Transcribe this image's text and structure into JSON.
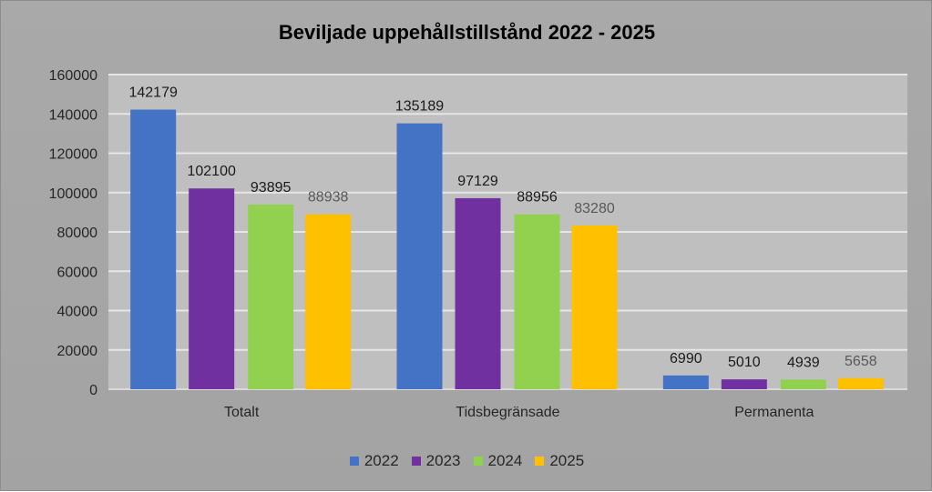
{
  "chart_data": {
    "type": "bar",
    "title": "Beviljade uppehållstillstånd 2022 - 2025",
    "categories": [
      "Totalt",
      "Tidsbegränsade",
      "Permanenta"
    ],
    "series": [
      {
        "name": "2022",
        "color": "#4472c4",
        "values": [
          142179,
          135189,
          6990
        ]
      },
      {
        "name": "2023",
        "color": "#7030a0",
        "values": [
          102100,
          97129,
          5010
        ]
      },
      {
        "name": "2024",
        "color": "#92d050",
        "values": [
          93895,
          88956,
          4939
        ]
      },
      {
        "name": "2025",
        "color": "#ffc000",
        "values": [
          88938,
          83280,
          5658
        ]
      }
    ],
    "ylim": [
      0,
      160000
    ],
    "yticks": [
      0,
      20000,
      40000,
      60000,
      80000,
      100000,
      120000,
      140000,
      160000
    ],
    "xlabel": "",
    "ylabel": "",
    "grid": true,
    "legend": "bottom"
  }
}
